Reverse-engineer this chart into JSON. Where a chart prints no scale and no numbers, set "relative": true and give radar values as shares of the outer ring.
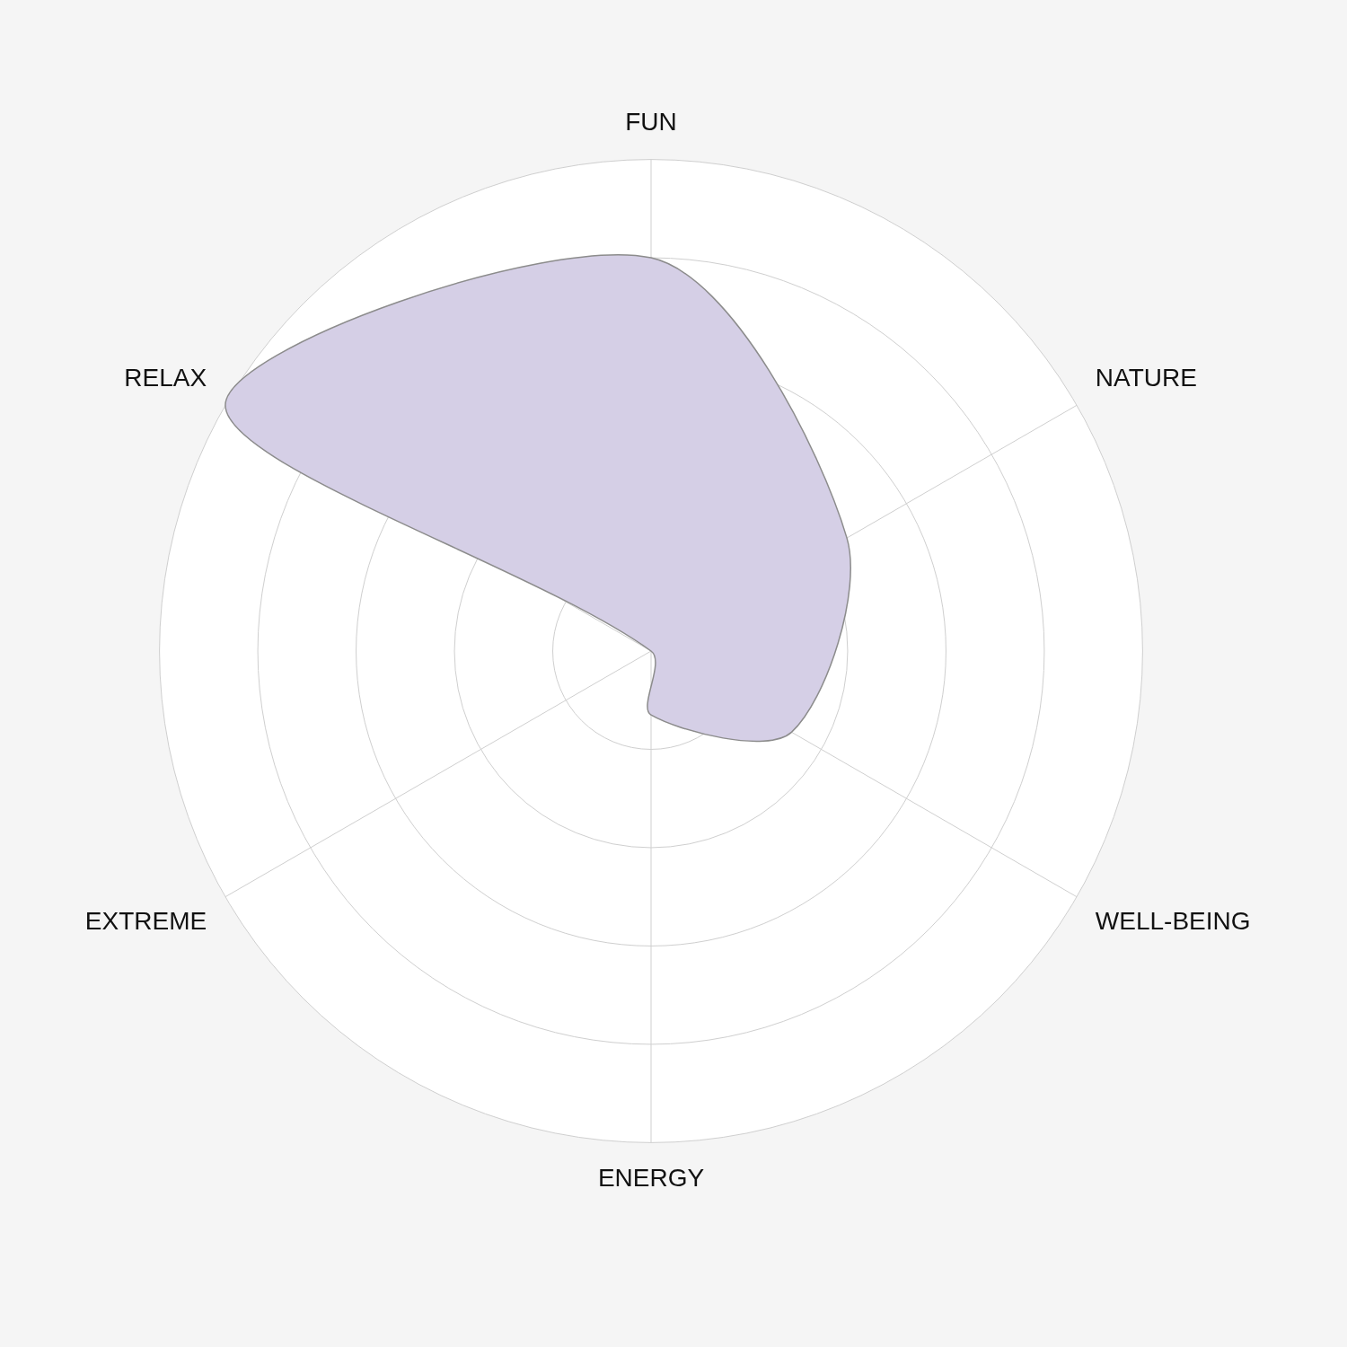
{
  "chart_data": {
    "type": "radar",
    "relative": true,
    "categories": [
      "FUN",
      "NATURE",
      "WELL-BEING",
      "ENERGY",
      "EXTREME",
      "RELAX"
    ],
    "series": [
      {
        "color": "#d5cfe6",
        "values": [
          0.8,
          0.46,
          0.33,
          0.13,
          0.0,
          1.0
        ]
      }
    ],
    "grid": true,
    "legend": false
  }
}
